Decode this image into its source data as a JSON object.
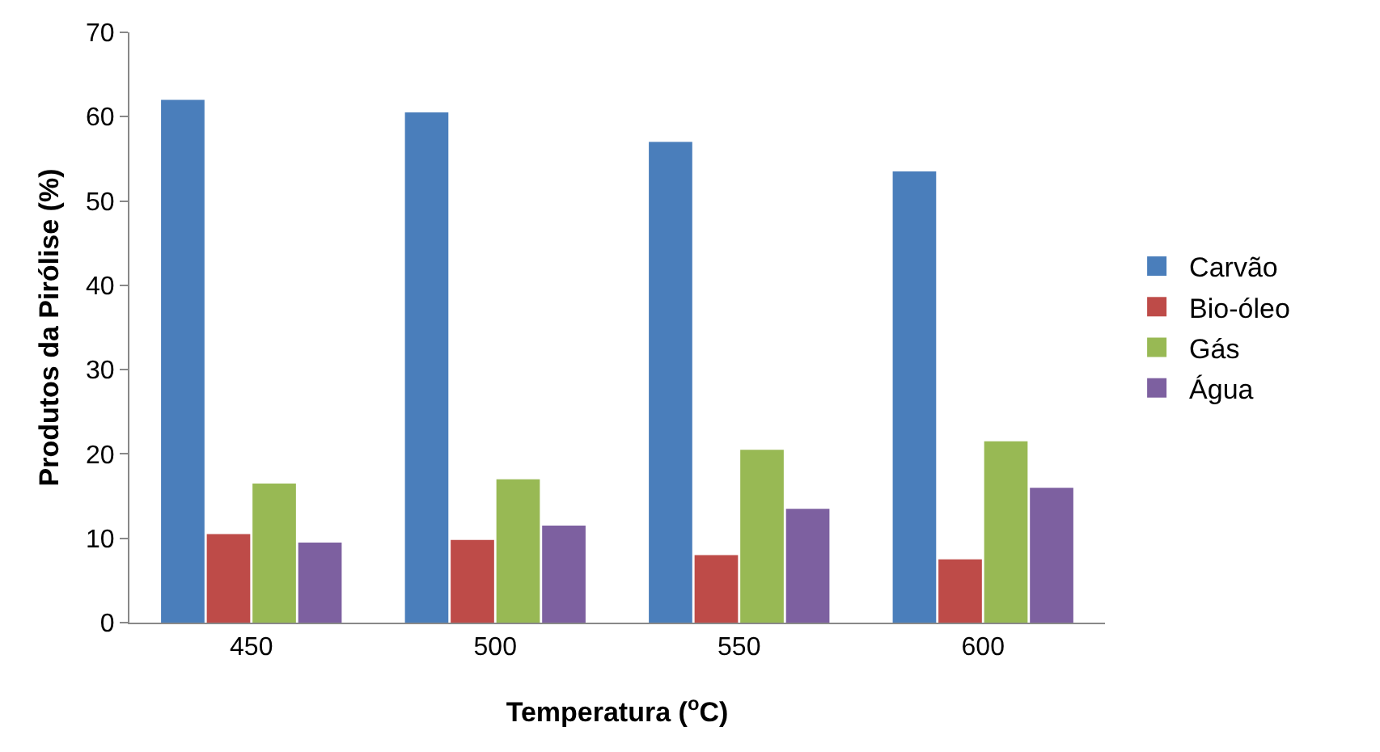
{
  "chart_data": {
    "type": "bar",
    "xlabel": "Temperatura ($^{o}$C)",
    "ylabel": "Produtos da Pirólise (%)",
    "categories": [
      "450",
      "500",
      "550",
      "600"
    ],
    "series": [
      {
        "name": "Carvão",
        "color": "#4a7ebb",
        "values": [
          62,
          60.5,
          57,
          53.5
        ]
      },
      {
        "name": "Bio-óleo",
        "color": "#be4b48",
        "values": [
          10.5,
          9.8,
          8,
          7.5
        ]
      },
      {
        "name": "Gás",
        "color": "#98b954",
        "values": [
          16.5,
          17,
          20.5,
          21.5
        ]
      },
      {
        "name": "Água",
        "color": "#7d60a0",
        "values": [
          9.5,
          11.5,
          13.5,
          16
        ]
      }
    ],
    "ylim": [
      0,
      70
    ],
    "yticks": [
      0,
      10,
      20,
      30,
      40,
      50,
      60,
      70
    ],
    "grid": false,
    "legend": "right"
  }
}
